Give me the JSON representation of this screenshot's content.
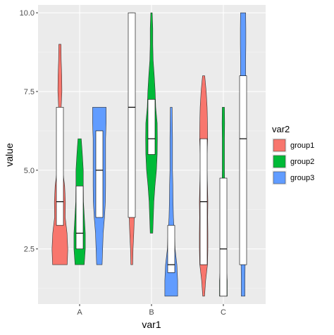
{
  "chart_data": {
    "type": "violin",
    "title": "",
    "xlabel": "var1",
    "ylabel": "value",
    "categories": [
      "A",
      "B",
      "C"
    ],
    "ylim": [
      0.75,
      10.25
    ],
    "yticks": [
      2.5,
      5.0,
      7.5,
      10.0
    ],
    "ytick_labels": [
      "2.5",
      "5.0",
      "7.5",
      "10.0"
    ],
    "grid": true,
    "legend": {
      "title": "var2",
      "position": "right"
    },
    "series": [
      {
        "name": "group1",
        "color": "#F8766D",
        "violins": [
          {
            "category": "A",
            "profile": [
              [
                2.0,
                0.8
              ],
              [
                2.5,
                0.86
              ],
              [
                3.0,
                0.78
              ],
              [
                3.5,
                0.58
              ],
              [
                4.0,
                0.6
              ],
              [
                4.5,
                0.52
              ],
              [
                5.0,
                0.3
              ],
              [
                5.5,
                0.1
              ],
              [
                6.0,
                0.1
              ],
              [
                6.5,
                0.12
              ],
              [
                7.0,
                0.14
              ],
              [
                7.5,
                0.22
              ],
              [
                8.0,
                0.2
              ],
              [
                8.5,
                0.14
              ],
              [
                9.0,
                0.12
              ]
            ],
            "q1": 3.25,
            "median": 4.0,
            "q3": 7.0
          },
          {
            "category": "B",
            "profile": [
              [
                2.0,
                0.1
              ],
              [
                2.5,
                0.14
              ],
              [
                3.0,
                0.22
              ],
              [
                3.5,
                0.28
              ],
              [
                4.0,
                0.28
              ],
              [
                4.5,
                0.28
              ],
              [
                5.0,
                0.26
              ],
              [
                5.5,
                0.22
              ],
              [
                6.0,
                0.2
              ],
              [
                6.5,
                0.18
              ],
              [
                7.0,
                0.18
              ],
              [
                7.5,
                0.16
              ],
              [
                8.0,
                0.16
              ],
              [
                8.5,
                0.18
              ],
              [
                9.0,
                0.18
              ],
              [
                9.5,
                0.18
              ],
              [
                10.0,
                0.18
              ]
            ],
            "q1": 3.5,
            "median": 7.0,
            "q3": 10.0
          },
          {
            "category": "C",
            "profile": [
              [
                1.0,
                0.1
              ],
              [
                1.5,
                0.22
              ],
              [
                2.0,
                0.42
              ],
              [
                2.5,
                0.46
              ],
              [
                3.0,
                0.46
              ],
              [
                3.5,
                0.44
              ],
              [
                4.0,
                0.46
              ],
              [
                4.5,
                0.42
              ],
              [
                5.0,
                0.36
              ],
              [
                5.5,
                0.36
              ],
              [
                6.0,
                0.44
              ],
              [
                6.5,
                0.42
              ],
              [
                7.0,
                0.38
              ],
              [
                7.5,
                0.28
              ],
              [
                8.0,
                0.12
              ]
            ],
            "q1": 2.0,
            "median": 4.0,
            "q3": 6.0
          }
        ]
      },
      {
        "name": "group2",
        "color": "#00BA38",
        "violins": [
          {
            "category": "A",
            "profile": [
              [
                2.0,
                0.5
              ],
              [
                2.5,
                0.62
              ],
              [
                3.0,
                0.62
              ],
              [
                3.5,
                0.52
              ],
              [
                4.0,
                0.42
              ],
              [
                4.5,
                0.4
              ],
              [
                5.0,
                0.4
              ],
              [
                5.5,
                0.3
              ],
              [
                6.0,
                0.18
              ]
            ],
            "q1": 2.5,
            "median": 3.0,
            "q3": 4.5
          },
          {
            "category": "B",
            "profile": [
              [
                3.0,
                0.14
              ],
              [
                3.5,
                0.2
              ],
              [
                4.0,
                0.26
              ],
              [
                4.5,
                0.38
              ],
              [
                5.0,
                0.54
              ],
              [
                5.5,
                0.62
              ],
              [
                6.0,
                0.64
              ],
              [
                6.5,
                0.62
              ],
              [
                7.0,
                0.46
              ],
              [
                7.5,
                0.4
              ],
              [
                8.0,
                0.3
              ],
              [
                8.5,
                0.18
              ],
              [
                9.0,
                0.14
              ],
              [
                9.5,
                0.14
              ],
              [
                10.0,
                0.08
              ]
            ],
            "q1": 5.5,
            "median": 6.0,
            "q3": 7.25
          },
          {
            "category": "C",
            "profile": [
              [
                1.0,
                0.42
              ],
              [
                1.5,
                0.42
              ],
              [
                2.0,
                0.3
              ],
              [
                2.5,
                0.26
              ],
              [
                3.0,
                0.18
              ],
              [
                3.5,
                0.14
              ],
              [
                4.0,
                0.14
              ],
              [
                4.5,
                0.14
              ],
              [
                5.0,
                0.12
              ],
              [
                5.5,
                0.12
              ],
              [
                6.0,
                0.12
              ],
              [
                6.5,
                0.14
              ],
              [
                7.0,
                0.12
              ]
            ],
            "q1": 1.0,
            "median": 2.5,
            "q3": 4.75
          }
        ]
      },
      {
        "name": "group3",
        "color": "#619CFF",
        "violins": [
          {
            "category": "A",
            "profile": [
              [
                2.0,
                0.3
              ],
              [
                2.5,
                0.36
              ],
              [
                3.0,
                0.42
              ],
              [
                3.5,
                0.56
              ],
              [
                4.0,
                0.66
              ],
              [
                4.5,
                0.68
              ],
              [
                5.0,
                0.68
              ],
              [
                5.5,
                0.68
              ],
              [
                6.0,
                0.68
              ],
              [
                6.5,
                0.74
              ],
              [
                7.0,
                0.74
              ]
            ],
            "q1": 3.5,
            "median": 5.0,
            "q3": 6.25
          },
          {
            "category": "B",
            "profile": [
              [
                1.0,
                0.7
              ],
              [
                1.5,
                0.7
              ],
              [
                2.0,
                0.62
              ],
              [
                2.5,
                0.42
              ],
              [
                3.0,
                0.34
              ],
              [
                3.5,
                0.24
              ],
              [
                4.0,
                0.2
              ],
              [
                4.5,
                0.18
              ],
              [
                5.0,
                0.14
              ],
              [
                5.5,
                0.14
              ],
              [
                6.0,
                0.14
              ],
              [
                6.5,
                0.12
              ],
              [
                7.0,
                0.1
              ]
            ],
            "q1": 1.75,
            "median": 2.0,
            "q3": 3.25
          },
          {
            "category": "C",
            "profile": [
              [
                1.0,
                0.2
              ],
              [
                1.5,
                0.2
              ],
              [
                2.0,
                0.22
              ],
              [
                2.5,
                0.26
              ],
              [
                3.0,
                0.26
              ],
              [
                3.5,
                0.24
              ],
              [
                4.0,
                0.2
              ],
              [
                4.5,
                0.18
              ],
              [
                5.0,
                0.18
              ],
              [
                5.5,
                0.2
              ],
              [
                6.0,
                0.24
              ],
              [
                6.5,
                0.26
              ],
              [
                7.0,
                0.26
              ],
              [
                7.5,
                0.26
              ],
              [
                8.0,
                0.28
              ],
              [
                8.5,
                0.28
              ],
              [
                9.0,
                0.3
              ],
              [
                9.5,
                0.3
              ],
              [
                10.0,
                0.28
              ]
            ],
            "q1": 2.0,
            "median": 6.0,
            "q3": 8.0
          }
        ]
      }
    ]
  }
}
